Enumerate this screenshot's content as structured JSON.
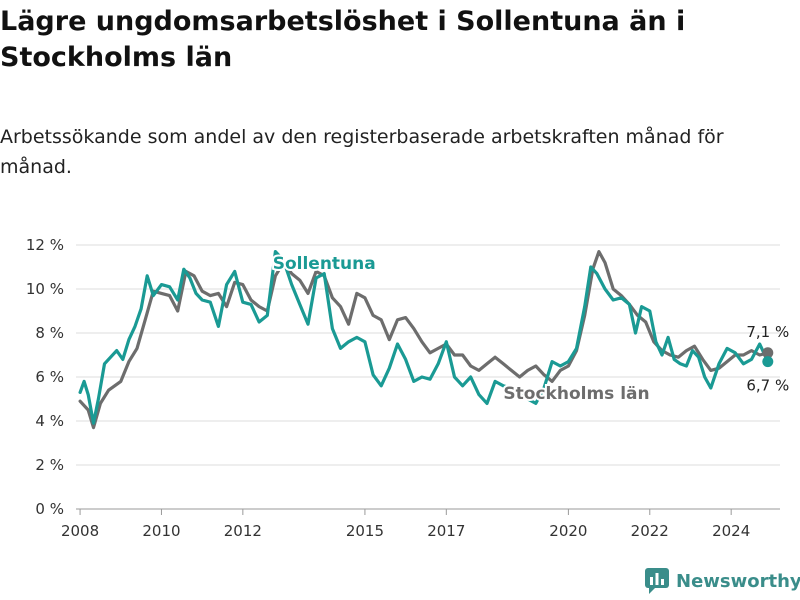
{
  "title": "Lägre ungdomsarbetslöshet i Sollentuna än i Stockholms län",
  "subtitle": "Arbetssökande som andel av den registerbaserade arbetskraften månad för månad.",
  "brand": {
    "name": "Newsworthy",
    "color": "#3a8d8a"
  },
  "chart_data": {
    "type": "line",
    "x_unit": "year",
    "y_unit": "%",
    "ylim": [
      0,
      12
    ],
    "y_ticks": [
      0,
      2,
      4,
      6,
      8,
      10,
      12
    ],
    "y_tick_labels": [
      "0 %",
      "2 %",
      "4 %",
      "6 %",
      "8 %",
      "10 %",
      "12 %"
    ],
    "x_ticks": [
      2008,
      2010,
      2012,
      2015,
      2017,
      2020,
      2022,
      2024
    ],
    "xlim": [
      2007.9,
      2025.2
    ],
    "grid": "horizontal",
    "series": [
      {
        "name": "Stockholms län",
        "color": "#6d6d6d",
        "end_label": "7,1 %",
        "points": [
          [
            2008.0,
            4.9
          ],
          [
            2008.2,
            4.5
          ],
          [
            2008.33,
            3.7
          ],
          [
            2008.5,
            4.8
          ],
          [
            2008.7,
            5.4
          ],
          [
            2009.0,
            5.8
          ],
          [
            2009.2,
            6.7
          ],
          [
            2009.4,
            7.3
          ],
          [
            2009.6,
            8.6
          ],
          [
            2009.8,
            9.9
          ],
          [
            2010.0,
            9.8
          ],
          [
            2010.2,
            9.7
          ],
          [
            2010.4,
            9.0
          ],
          [
            2010.6,
            10.8
          ],
          [
            2010.8,
            10.6
          ],
          [
            2011.0,
            9.9
          ],
          [
            2011.2,
            9.7
          ],
          [
            2011.4,
            9.8
          ],
          [
            2011.6,
            9.2
          ],
          [
            2011.8,
            10.3
          ],
          [
            2012.0,
            10.2
          ],
          [
            2012.2,
            9.5
          ],
          [
            2012.4,
            9.2
          ],
          [
            2012.6,
            9.0
          ],
          [
            2012.8,
            10.6
          ],
          [
            2013.0,
            11.2
          ],
          [
            2013.2,
            10.7
          ],
          [
            2013.4,
            10.4
          ],
          [
            2013.6,
            9.8
          ],
          [
            2013.8,
            10.8
          ],
          [
            2014.0,
            10.6
          ],
          [
            2014.2,
            9.6
          ],
          [
            2014.4,
            9.2
          ],
          [
            2014.6,
            8.4
          ],
          [
            2014.8,
            9.8
          ],
          [
            2015.0,
            9.6
          ],
          [
            2015.2,
            8.8
          ],
          [
            2015.4,
            8.6
          ],
          [
            2015.6,
            7.7
          ],
          [
            2015.8,
            8.6
          ],
          [
            2016.0,
            8.7
          ],
          [
            2016.2,
            8.2
          ],
          [
            2016.4,
            7.6
          ],
          [
            2016.6,
            7.1
          ],
          [
            2016.8,
            7.3
          ],
          [
            2017.0,
            7.5
          ],
          [
            2017.2,
            7.0
          ],
          [
            2017.4,
            7.0
          ],
          [
            2017.6,
            6.5
          ],
          [
            2017.8,
            6.3
          ],
          [
            2018.0,
            6.6
          ],
          [
            2018.2,
            6.9
          ],
          [
            2018.4,
            6.6
          ],
          [
            2018.6,
            6.3
          ],
          [
            2018.8,
            6.0
          ],
          [
            2019.0,
            6.3
          ],
          [
            2019.2,
            6.5
          ],
          [
            2019.4,
            6.1
          ],
          [
            2019.6,
            5.8
          ],
          [
            2019.8,
            6.3
          ],
          [
            2020.0,
            6.5
          ],
          [
            2020.2,
            7.2
          ],
          [
            2020.4,
            8.8
          ],
          [
            2020.6,
            10.9
          ],
          [
            2020.75,
            11.7
          ],
          [
            2020.9,
            11.2
          ],
          [
            2021.1,
            10.0
          ],
          [
            2021.3,
            9.7
          ],
          [
            2021.5,
            9.3
          ],
          [
            2021.7,
            8.8
          ],
          [
            2021.9,
            8.5
          ],
          [
            2022.1,
            7.6
          ],
          [
            2022.3,
            7.2
          ],
          [
            2022.5,
            7.0
          ],
          [
            2022.7,
            6.9
          ],
          [
            2022.9,
            7.2
          ],
          [
            2023.1,
            7.4
          ],
          [
            2023.3,
            6.8
          ],
          [
            2023.5,
            6.3
          ],
          [
            2023.7,
            6.4
          ],
          [
            2023.9,
            6.7
          ],
          [
            2024.1,
            7.0
          ],
          [
            2024.3,
            7.0
          ],
          [
            2024.5,
            7.2
          ],
          [
            2024.7,
            7.0
          ],
          [
            2024.9,
            7.1
          ]
        ]
      },
      {
        "name": "Sollentuna",
        "color": "#1a9a94",
        "end_label": "6,7 %",
        "points": [
          [
            2008.0,
            5.3
          ],
          [
            2008.1,
            5.8
          ],
          [
            2008.2,
            5.2
          ],
          [
            2008.33,
            3.9
          ],
          [
            2008.45,
            5.0
          ],
          [
            2008.6,
            6.6
          ],
          [
            2008.75,
            6.9
          ],
          [
            2008.9,
            7.2
          ],
          [
            2009.05,
            6.8
          ],
          [
            2009.2,
            7.7
          ],
          [
            2009.35,
            8.3
          ],
          [
            2009.5,
            9.1
          ],
          [
            2009.65,
            10.6
          ],
          [
            2009.8,
            9.7
          ],
          [
            2010.0,
            10.2
          ],
          [
            2010.2,
            10.1
          ],
          [
            2010.4,
            9.5
          ],
          [
            2010.55,
            10.9
          ],
          [
            2010.7,
            10.5
          ],
          [
            2010.85,
            9.8
          ],
          [
            2011.0,
            9.5
          ],
          [
            2011.2,
            9.4
          ],
          [
            2011.4,
            8.3
          ],
          [
            2011.6,
            10.2
          ],
          [
            2011.8,
            10.8
          ],
          [
            2012.0,
            9.4
          ],
          [
            2012.2,
            9.3
          ],
          [
            2012.4,
            8.5
          ],
          [
            2012.6,
            8.8
          ],
          [
            2012.8,
            11.7
          ],
          [
            2013.0,
            11.3
          ],
          [
            2013.2,
            10.2
          ],
          [
            2013.4,
            9.3
          ],
          [
            2013.6,
            8.4
          ],
          [
            2013.8,
            10.5
          ],
          [
            2014.0,
            10.7
          ],
          [
            2014.2,
            8.2
          ],
          [
            2014.4,
            7.3
          ],
          [
            2014.6,
            7.6
          ],
          [
            2014.8,
            7.8
          ],
          [
            2015.0,
            7.6
          ],
          [
            2015.2,
            6.1
          ],
          [
            2015.4,
            5.6
          ],
          [
            2015.6,
            6.4
          ],
          [
            2015.8,
            7.5
          ],
          [
            2016.0,
            6.8
          ],
          [
            2016.2,
            5.8
          ],
          [
            2016.4,
            6.0
          ],
          [
            2016.6,
            5.9
          ],
          [
            2016.8,
            6.6
          ],
          [
            2017.0,
            7.6
          ],
          [
            2017.2,
            6.0
          ],
          [
            2017.4,
            5.6
          ],
          [
            2017.6,
            6.0
          ],
          [
            2017.8,
            5.2
          ],
          [
            2018.0,
            4.8
          ],
          [
            2018.2,
            5.8
          ],
          [
            2018.4,
            5.6
          ],
          [
            2018.6,
            5.5
          ],
          [
            2018.8,
            5.2
          ],
          [
            2019.0,
            5.0
          ],
          [
            2019.2,
            4.8
          ],
          [
            2019.4,
            5.5
          ],
          [
            2019.6,
            6.7
          ],
          [
            2019.8,
            6.5
          ],
          [
            2020.0,
            6.7
          ],
          [
            2020.2,
            7.3
          ],
          [
            2020.4,
            9.2
          ],
          [
            2020.55,
            11.0
          ],
          [
            2020.7,
            10.7
          ],
          [
            2020.9,
            10.0
          ],
          [
            2021.1,
            9.5
          ],
          [
            2021.3,
            9.6
          ],
          [
            2021.5,
            9.3
          ],
          [
            2021.65,
            8.0
          ],
          [
            2021.8,
            9.2
          ],
          [
            2022.0,
            9.0
          ],
          [
            2022.15,
            7.6
          ],
          [
            2022.3,
            7.0
          ],
          [
            2022.45,
            7.8
          ],
          [
            2022.6,
            6.8
          ],
          [
            2022.75,
            6.6
          ],
          [
            2022.9,
            6.5
          ],
          [
            2023.05,
            7.2
          ],
          [
            2023.2,
            6.9
          ],
          [
            2023.35,
            6.0
          ],
          [
            2023.5,
            5.5
          ],
          [
            2023.7,
            6.6
          ],
          [
            2023.9,
            7.3
          ],
          [
            2024.1,
            7.1
          ],
          [
            2024.3,
            6.6
          ],
          [
            2024.5,
            6.8
          ],
          [
            2024.7,
            7.5
          ],
          [
            2024.9,
            6.7
          ]
        ]
      }
    ]
  }
}
